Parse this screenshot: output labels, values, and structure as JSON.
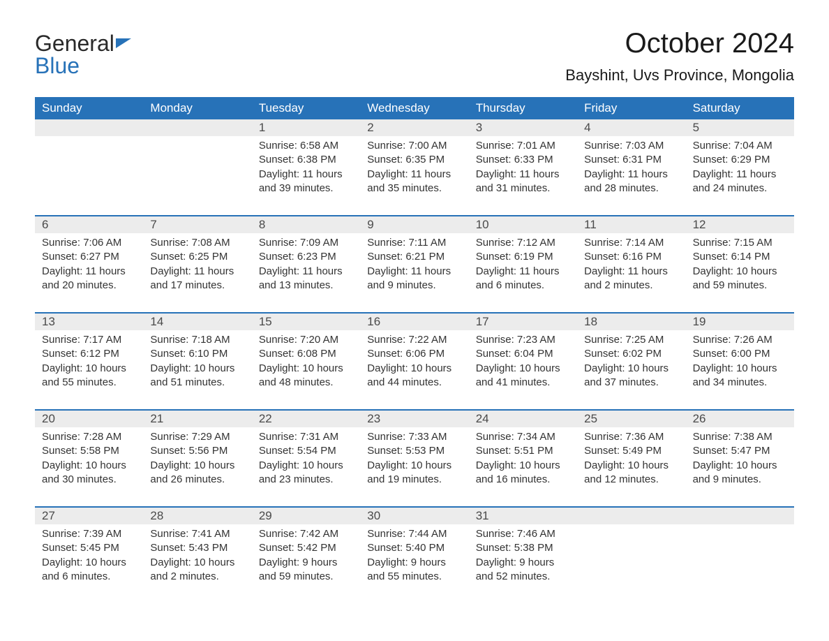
{
  "logo": {
    "text_general": "General",
    "text_blue": "Blue",
    "flag_color": "#2772b8"
  },
  "title": "October 2024",
  "location": "Bayshint, Uvs Province, Mongolia",
  "colors": {
    "header_bg": "#2772b8",
    "header_text": "#ffffff",
    "daynum_bg": "#ececec",
    "divider": "#2772b8",
    "body_text": "#333333",
    "title_text": "#1a1a1a",
    "background": "#ffffff"
  },
  "typography": {
    "title_fontsize": 40,
    "location_fontsize": 22,
    "weekday_fontsize": 17,
    "daynum_fontsize": 17,
    "content_fontsize": 15,
    "logo_fontsize": 32
  },
  "weekdays": [
    "Sunday",
    "Monday",
    "Tuesday",
    "Wednesday",
    "Thursday",
    "Friday",
    "Saturday"
  ],
  "weeks": [
    [
      null,
      null,
      {
        "day": "1",
        "sunrise": "Sunrise: 6:58 AM",
        "sunset": "Sunset: 6:38 PM",
        "daylight1": "Daylight: 11 hours",
        "daylight2": "and 39 minutes."
      },
      {
        "day": "2",
        "sunrise": "Sunrise: 7:00 AM",
        "sunset": "Sunset: 6:35 PM",
        "daylight1": "Daylight: 11 hours",
        "daylight2": "and 35 minutes."
      },
      {
        "day": "3",
        "sunrise": "Sunrise: 7:01 AM",
        "sunset": "Sunset: 6:33 PM",
        "daylight1": "Daylight: 11 hours",
        "daylight2": "and 31 minutes."
      },
      {
        "day": "4",
        "sunrise": "Sunrise: 7:03 AM",
        "sunset": "Sunset: 6:31 PM",
        "daylight1": "Daylight: 11 hours",
        "daylight2": "and 28 minutes."
      },
      {
        "day": "5",
        "sunrise": "Sunrise: 7:04 AM",
        "sunset": "Sunset: 6:29 PM",
        "daylight1": "Daylight: 11 hours",
        "daylight2": "and 24 minutes."
      }
    ],
    [
      {
        "day": "6",
        "sunrise": "Sunrise: 7:06 AM",
        "sunset": "Sunset: 6:27 PM",
        "daylight1": "Daylight: 11 hours",
        "daylight2": "and 20 minutes."
      },
      {
        "day": "7",
        "sunrise": "Sunrise: 7:08 AM",
        "sunset": "Sunset: 6:25 PM",
        "daylight1": "Daylight: 11 hours",
        "daylight2": "and 17 minutes."
      },
      {
        "day": "8",
        "sunrise": "Sunrise: 7:09 AM",
        "sunset": "Sunset: 6:23 PM",
        "daylight1": "Daylight: 11 hours",
        "daylight2": "and 13 minutes."
      },
      {
        "day": "9",
        "sunrise": "Sunrise: 7:11 AM",
        "sunset": "Sunset: 6:21 PM",
        "daylight1": "Daylight: 11 hours",
        "daylight2": "and 9 minutes."
      },
      {
        "day": "10",
        "sunrise": "Sunrise: 7:12 AM",
        "sunset": "Sunset: 6:19 PM",
        "daylight1": "Daylight: 11 hours",
        "daylight2": "and 6 minutes."
      },
      {
        "day": "11",
        "sunrise": "Sunrise: 7:14 AM",
        "sunset": "Sunset: 6:16 PM",
        "daylight1": "Daylight: 11 hours",
        "daylight2": "and 2 minutes."
      },
      {
        "day": "12",
        "sunrise": "Sunrise: 7:15 AM",
        "sunset": "Sunset: 6:14 PM",
        "daylight1": "Daylight: 10 hours",
        "daylight2": "and 59 minutes."
      }
    ],
    [
      {
        "day": "13",
        "sunrise": "Sunrise: 7:17 AM",
        "sunset": "Sunset: 6:12 PM",
        "daylight1": "Daylight: 10 hours",
        "daylight2": "and 55 minutes."
      },
      {
        "day": "14",
        "sunrise": "Sunrise: 7:18 AM",
        "sunset": "Sunset: 6:10 PM",
        "daylight1": "Daylight: 10 hours",
        "daylight2": "and 51 minutes."
      },
      {
        "day": "15",
        "sunrise": "Sunrise: 7:20 AM",
        "sunset": "Sunset: 6:08 PM",
        "daylight1": "Daylight: 10 hours",
        "daylight2": "and 48 minutes."
      },
      {
        "day": "16",
        "sunrise": "Sunrise: 7:22 AM",
        "sunset": "Sunset: 6:06 PM",
        "daylight1": "Daylight: 10 hours",
        "daylight2": "and 44 minutes."
      },
      {
        "day": "17",
        "sunrise": "Sunrise: 7:23 AM",
        "sunset": "Sunset: 6:04 PM",
        "daylight1": "Daylight: 10 hours",
        "daylight2": "and 41 minutes."
      },
      {
        "day": "18",
        "sunrise": "Sunrise: 7:25 AM",
        "sunset": "Sunset: 6:02 PM",
        "daylight1": "Daylight: 10 hours",
        "daylight2": "and 37 minutes."
      },
      {
        "day": "19",
        "sunrise": "Sunrise: 7:26 AM",
        "sunset": "Sunset: 6:00 PM",
        "daylight1": "Daylight: 10 hours",
        "daylight2": "and 34 minutes."
      }
    ],
    [
      {
        "day": "20",
        "sunrise": "Sunrise: 7:28 AM",
        "sunset": "Sunset: 5:58 PM",
        "daylight1": "Daylight: 10 hours",
        "daylight2": "and 30 minutes."
      },
      {
        "day": "21",
        "sunrise": "Sunrise: 7:29 AM",
        "sunset": "Sunset: 5:56 PM",
        "daylight1": "Daylight: 10 hours",
        "daylight2": "and 26 minutes."
      },
      {
        "day": "22",
        "sunrise": "Sunrise: 7:31 AM",
        "sunset": "Sunset: 5:54 PM",
        "daylight1": "Daylight: 10 hours",
        "daylight2": "and 23 minutes."
      },
      {
        "day": "23",
        "sunrise": "Sunrise: 7:33 AM",
        "sunset": "Sunset: 5:53 PM",
        "daylight1": "Daylight: 10 hours",
        "daylight2": "and 19 minutes."
      },
      {
        "day": "24",
        "sunrise": "Sunrise: 7:34 AM",
        "sunset": "Sunset: 5:51 PM",
        "daylight1": "Daylight: 10 hours",
        "daylight2": "and 16 minutes."
      },
      {
        "day": "25",
        "sunrise": "Sunrise: 7:36 AM",
        "sunset": "Sunset: 5:49 PM",
        "daylight1": "Daylight: 10 hours",
        "daylight2": "and 12 minutes."
      },
      {
        "day": "26",
        "sunrise": "Sunrise: 7:38 AM",
        "sunset": "Sunset: 5:47 PM",
        "daylight1": "Daylight: 10 hours",
        "daylight2": "and 9 minutes."
      }
    ],
    [
      {
        "day": "27",
        "sunrise": "Sunrise: 7:39 AM",
        "sunset": "Sunset: 5:45 PM",
        "daylight1": "Daylight: 10 hours",
        "daylight2": "and 6 minutes."
      },
      {
        "day": "28",
        "sunrise": "Sunrise: 7:41 AM",
        "sunset": "Sunset: 5:43 PM",
        "daylight1": "Daylight: 10 hours",
        "daylight2": "and 2 minutes."
      },
      {
        "day": "29",
        "sunrise": "Sunrise: 7:42 AM",
        "sunset": "Sunset: 5:42 PM",
        "daylight1": "Daylight: 9 hours",
        "daylight2": "and 59 minutes."
      },
      {
        "day": "30",
        "sunrise": "Sunrise: 7:44 AM",
        "sunset": "Sunset: 5:40 PM",
        "daylight1": "Daylight: 9 hours",
        "daylight2": "and 55 minutes."
      },
      {
        "day": "31",
        "sunrise": "Sunrise: 7:46 AM",
        "sunset": "Sunset: 5:38 PM",
        "daylight1": "Daylight: 9 hours",
        "daylight2": "and 52 minutes."
      },
      null,
      null
    ]
  ]
}
